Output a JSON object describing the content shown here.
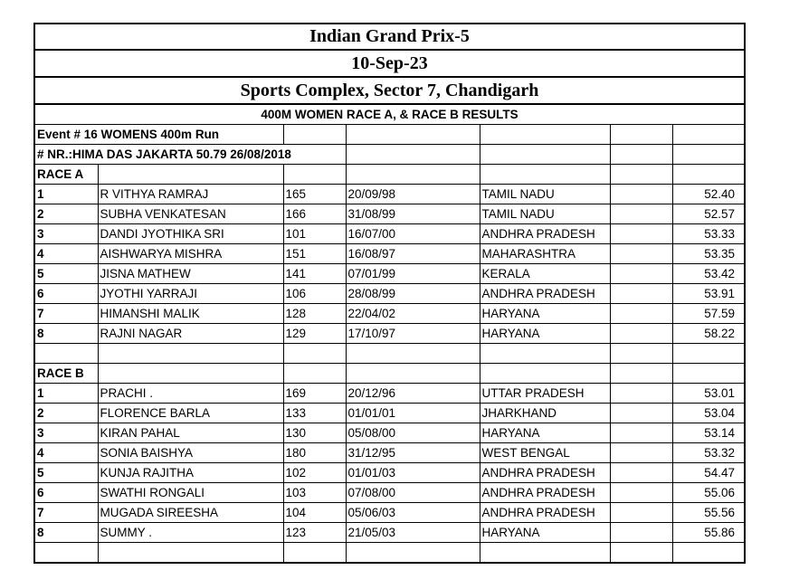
{
  "title": "Indian Grand Prix-5",
  "date": "10-Sep-23",
  "venue": "Sports Complex, Sector 7, Chandigarh",
  "subtitle": "400M WOMEN RACE A, & RACE B RESULTS",
  "event": "Event # 16 WOMENS 400m Run",
  "record": "# NR.:HIMA DAS JAKARTA 50.79 26/08/2018",
  "race_a": {
    "label": "RACE A",
    "rows": [
      [
        "1",
        "R VITHYA RAMRAJ",
        "165",
        "20/09/98",
        "TAMIL NADU",
        "52.40"
      ],
      [
        "2",
        "SUBHA VENKATESAN",
        "166",
        "31/08/99",
        "TAMIL NADU",
        "52.57"
      ],
      [
        "3",
        "DANDI JYOTHIKA SRI",
        "101",
        "16/07/00",
        "ANDHRA PRADESH",
        "53.33"
      ],
      [
        "4",
        "AISHWARYA MISHRA",
        "151",
        "16/08/97",
        "MAHARASHTRA",
        "53.35"
      ],
      [
        "5",
        "JISNA MATHEW",
        "141",
        "07/01/99",
        "KERALA",
        "53.42"
      ],
      [
        "6",
        "JYOTHI YARRAJI",
        "106",
        "28/08/99",
        "ANDHRA PRADESH",
        "53.91"
      ],
      [
        "7",
        "HIMANSHI MALIK",
        "128",
        "22/04/02",
        "HARYANA",
        "57.59"
      ],
      [
        "8",
        "RAJNI NAGAR",
        "129",
        "17/10/97",
        "HARYANA",
        "58.22"
      ]
    ]
  },
  "race_b": {
    "label": "RACE B",
    "rows": [
      [
        "1",
        "PRACHI .",
        "169",
        "20/12/96",
        "UTTAR PRADESH",
        "53.01"
      ],
      [
        "2",
        "FLORENCE BARLA",
        "133",
        "01/01/01",
        "JHARKHAND",
        "53.04"
      ],
      [
        "3",
        "KIRAN PAHAL",
        "130",
        "05/08/00",
        "HARYANA",
        "53.14"
      ],
      [
        "4",
        "SONIA BAISHYA",
        "180",
        "31/12/95",
        "WEST BENGAL",
        "53.32"
      ],
      [
        "5",
        "KUNJA RAJITHA",
        "102",
        "01/01/03",
        "ANDHRA PRADESH",
        "54.47"
      ],
      [
        "6",
        "SWATHI RONGALI",
        "103",
        "07/08/00",
        "ANDHRA PRADESH",
        "55.06"
      ],
      [
        "7",
        "MUGADA SIREESHA",
        "104",
        "05/06/03",
        "ANDHRA PRADESH",
        "55.56"
      ],
      [
        "8",
        "SUMMY .",
        "123",
        "21/05/03",
        "HARYANA",
        "55.86"
      ]
    ]
  }
}
